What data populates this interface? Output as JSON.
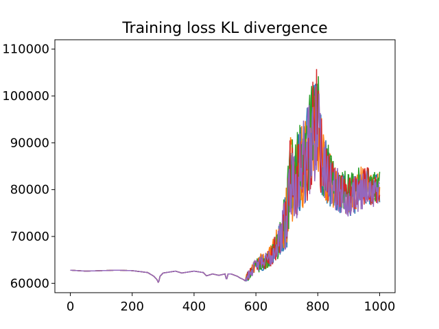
{
  "chart_data": {
    "type": "line",
    "title": "Training loss KL divergence",
    "xlabel": "",
    "ylabel": "",
    "xlim": [
      -50,
      1050
    ],
    "ylim": [
      58000,
      112000
    ],
    "x_ticks": [
      0,
      200,
      400,
      600,
      800,
      1000
    ],
    "x_tick_labels": [
      "0",
      "200",
      "400",
      "600",
      "800",
      "1000"
    ],
    "y_ticks": [
      60000,
      70000,
      80000,
      90000,
      100000,
      110000
    ],
    "y_tick_labels": [
      "60000",
      "70000",
      "80000",
      "90000",
      "100000",
      "110000"
    ],
    "grid": false,
    "legend": "none",
    "series_colors": [
      "#1f77b4",
      "#ff7f0e",
      "#2ca02c",
      "#d62728",
      "#9467bd"
    ],
    "series": [
      {
        "x": [
          0,
          50,
          100,
          150,
          200,
          250,
          270,
          280,
          285,
          290,
          300,
          340,
          360,
          400,
          430,
          440,
          460,
          480,
          500,
          505,
          510,
          520,
          540,
          550,
          560,
          565,
          570,
          580,
          600,
          620,
          640,
          660,
          680,
          700,
          710,
          720,
          740,
          760,
          780,
          800,
          810,
          820,
          840,
          860,
          880,
          900,
          920,
          940,
          960,
          980,
          1000
        ],
        "values": [
          62800,
          62600,
          62700,
          62800,
          62700,
          62300,
          61500,
          60800,
          60100,
          61500,
          62200,
          62600,
          62200,
          62600,
          62300,
          61600,
          62000,
          61700,
          62000,
          60700,
          62000,
          62000,
          61500,
          61100,
          60800,
          60500,
          61200,
          62200,
          63800,
          64500,
          65000,
          67000,
          70000,
          74000,
          82000,
          81000,
          84000,
          86000,
          90000,
          96000,
          88000,
          84000,
          82000,
          80000,
          79000,
          78500,
          79000,
          80000,
          80500,
          79500,
          80000
        ]
      },
      {
        "x": [
          0,
          50,
          100,
          150,
          200,
          250,
          270,
          280,
          285,
          290,
          300,
          340,
          360,
          400,
          430,
          440,
          460,
          480,
          500,
          505,
          510,
          520,
          540,
          550,
          560,
          565,
          570,
          580,
          600,
          620,
          640,
          660,
          680,
          700,
          710,
          720,
          740,
          760,
          780,
          800,
          810,
          820,
          840,
          860,
          880,
          900,
          920,
          940,
          960,
          980,
          1000
        ],
        "values": [
          62800,
          62600,
          62700,
          62800,
          62700,
          62300,
          61500,
          60800,
          60100,
          61500,
          62200,
          62600,
          62200,
          62600,
          62300,
          61600,
          62000,
          61700,
          62000,
          60700,
          62000,
          62000,
          61500,
          61100,
          60800,
          60500,
          61300,
          62400,
          64000,
          64800,
          65300,
          67500,
          70500,
          74500,
          82500,
          81500,
          84500,
          86500,
          91000,
          96500,
          88500,
          84500,
          82500,
          80500,
          79500,
          79000,
          79500,
          80500,
          81000,
          80000,
          80500
        ]
      },
      {
        "x": [
          0,
          50,
          100,
          150,
          200,
          250,
          270,
          280,
          285,
          290,
          300,
          340,
          360,
          400,
          430,
          440,
          460,
          480,
          500,
          505,
          510,
          520,
          540,
          550,
          560,
          565,
          570,
          580,
          600,
          620,
          640,
          660,
          680,
          700,
          710,
          720,
          740,
          760,
          780,
          800,
          810,
          820,
          840,
          860,
          880,
          900,
          920,
          940,
          960,
          980,
          1000
        ],
        "values": [
          62800,
          62600,
          62700,
          62800,
          62700,
          62300,
          61500,
          60800,
          60100,
          61500,
          62200,
          62600,
          62200,
          62600,
          62300,
          61600,
          62000,
          61700,
          62000,
          60700,
          62000,
          62000,
          61500,
          61100,
          60800,
          60500,
          61100,
          62100,
          63600,
          64300,
          64900,
          66800,
          70200,
          74800,
          83000,
          82000,
          85000,
          87000,
          92000,
          97000,
          89000,
          85000,
          83000,
          81000,
          80000,
          79500,
          80000,
          81000,
          81500,
          80500,
          81000
        ]
      },
      {
        "x": [
          0,
          50,
          100,
          150,
          200,
          250,
          270,
          280,
          285,
          290,
          300,
          340,
          360,
          400,
          430,
          440,
          460,
          480,
          500,
          505,
          510,
          520,
          540,
          550,
          560,
          565,
          570,
          580,
          600,
          620,
          640,
          660,
          680,
          700,
          710,
          720,
          740,
          760,
          780,
          800,
          810,
          820,
          840,
          860,
          880,
          900,
          920,
          940,
          960,
          980,
          1000
        ],
        "values": [
          62800,
          62600,
          62700,
          62800,
          62700,
          62300,
          61500,
          60800,
          60100,
          61500,
          62200,
          62600,
          62200,
          62600,
          62300,
          61600,
          62000,
          61700,
          62000,
          60700,
          62000,
          62000,
          61500,
          61100,
          60800,
          60500,
          61200,
          62300,
          63900,
          64600,
          65100,
          67200,
          70300,
          74200,
          82200,
          81200,
          84200,
          86200,
          90500,
          97500,
          88200,
          84200,
          82200,
          80200,
          79200,
          78800,
          79300,
          80300,
          80800,
          79800,
          80300
        ]
      },
      {
        "x": [
          0,
          50,
          100,
          150,
          200,
          250,
          270,
          280,
          285,
          290,
          300,
          340,
          360,
          400,
          430,
          440,
          460,
          480,
          500,
          505,
          510,
          520,
          540,
          550,
          560,
          565,
          570,
          580,
          600,
          620,
          640,
          660,
          680,
          700,
          710,
          720,
          740,
          760,
          780,
          800,
          810,
          820,
          840,
          860,
          880,
          900,
          920,
          940,
          960,
          980,
          1000
        ],
        "values": [
          62800,
          62600,
          62700,
          62800,
          62700,
          62300,
          61500,
          60800,
          60100,
          61500,
          62200,
          62600,
          62200,
          62600,
          62300,
          61600,
          62000,
          61700,
          62000,
          60700,
          62000,
          62000,
          61500,
          61100,
          60800,
          60500,
          61200,
          62200,
          63800,
          64500,
          65000,
          67000,
          70000,
          74000,
          82000,
          81000,
          84000,
          86000,
          90000,
          96000,
          88000,
          84000,
          82000,
          80000,
          79000,
          78500,
          79000,
          80000,
          80500,
          79500,
          80000
        ]
      }
    ],
    "noise_amplitude": [
      0,
      0,
      0,
      0,
      0,
      0,
      0,
      0,
      0,
      0,
      0,
      0,
      0,
      0,
      0,
      0,
      0,
      0,
      0,
      0,
      0,
      0,
      0,
      0,
      0,
      0,
      800,
      1200,
      1500,
      1800,
      2000,
      2800,
      4000,
      7000,
      9000,
      9000,
      9000,
      10000,
      11000,
      12000,
      10000,
      8000,
      6000,
      5000,
      4500,
      4500,
      4500,
      4500,
      4000,
      3500,
      3500
    ]
  }
}
